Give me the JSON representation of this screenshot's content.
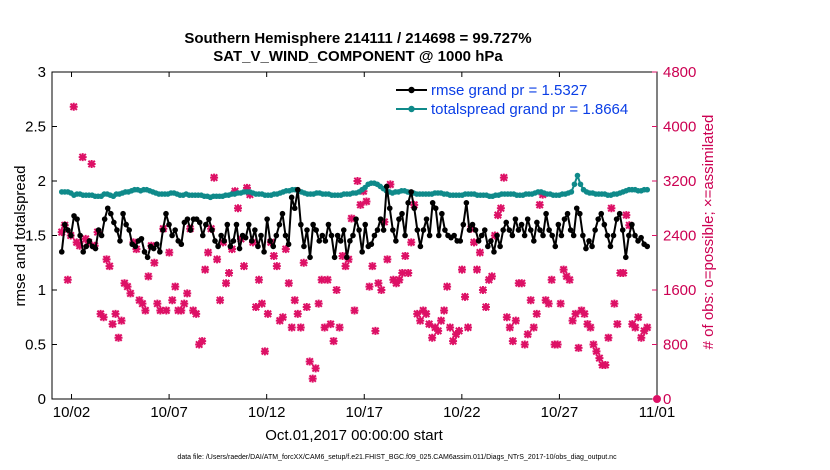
{
  "chart_data": {
    "type": "line",
    "title_line1": "Southern Hemisphere 214111 / 214698 = 99.727%",
    "title_line2": "SAT_V_WIND_COMPONENT @ 1000 hPa",
    "xlabel": "Oct.01,2017 00:00:00 start",
    "ylabel": "rmse and totalspread",
    "ylabel_right": "# of obs: o=possible; ×=assimilated",
    "footer": "data file: /Users/raeder/DAI/ATM_forcXX/CAM6_setup/f.e21.FHIST_BGC.f09_025.CAM6assim.011/Diags_NTrS_2017-10/obs_diag_output.nc",
    "xlim": [
      0.5,
      31.5
    ],
    "ylim": [
      0,
      3
    ],
    "ylim_right": [
      0,
      4800
    ],
    "x_ticks": [
      1.5,
      6.5,
      11.5,
      16.5,
      21.5,
      26.5,
      31.5
    ],
    "x_tick_labels": [
      "10/02",
      "10/07",
      "10/12",
      "10/17",
      "10/22",
      "10/27",
      "11/01"
    ],
    "y_ticks": [
      0,
      0.5,
      1,
      1.5,
      2,
      2.5,
      3
    ],
    "y_tick_labels": [
      "0",
      "0.5",
      "1",
      "1.5",
      "2",
      "2.5",
      "3"
    ],
    "y_ticks_right": [
      0,
      800,
      1600,
      2400,
      3200,
      4000,
      4800
    ],
    "y_tick_labels_right": [
      "0",
      "800",
      "1600",
      "2400",
      "3200",
      "4000",
      "4800"
    ],
    "colors": {
      "rmse": "#000000",
      "spread": "#0f8a8a",
      "obs": "#dd1166"
    },
    "series": [
      {
        "name": "rmse grand pr = 1.5327",
        "values": [
          1.35,
          1.6,
          1.55,
          1.5,
          1.68,
          1.65,
          1.5,
          1.35,
          1.4,
          1.45,
          1.4,
          1.38,
          1.55,
          1.5,
          1.65,
          1.75,
          1.7,
          1.62,
          1.55,
          1.45,
          1.7,
          1.6,
          1.55,
          1.42,
          1.4,
          1.45,
          1.47,
          1.35,
          1.3,
          1.4,
          1.38,
          1.42,
          1.35,
          1.55,
          1.7,
          1.6,
          1.5,
          1.55,
          1.45,
          1.42,
          1.62,
          1.65,
          1.55,
          1.65,
          1.65,
          1.62,
          1.5,
          1.6,
          1.65,
          1.55,
          1.45,
          1.4,
          1.5,
          1.45,
          1.6,
          1.4,
          1.45,
          1.6,
          1.38,
          1.5,
          1.48,
          1.6,
          1.45,
          1.55,
          1.4,
          1.5,
          1.35,
          1.65,
          1.45,
          1.4,
          1.5,
          1.6,
          1.7,
          1.5,
          1.42,
          1.85,
          1.75,
          1.92,
          1.6,
          1.4,
          1.55,
          1.3,
          1.6,
          1.55,
          1.45,
          1.5,
          1.45,
          1.6,
          1.5,
          1.3,
          1.5,
          1.45,
          1.55,
          1.3,
          1.45,
          1.5,
          1.65,
          1.55,
          1.35,
          1.6,
          1.4,
          1.42,
          1.5,
          1.55,
          1.65,
          1.55,
          1.95,
          1.75,
          1.55,
          1.45,
          1.65,
          1.7,
          1.5,
          1.8,
          1.9,
          1.75,
          1.55,
          1.4,
          1.55,
          1.65,
          1.5,
          1.8,
          1.75,
          1.5,
          1.7,
          1.55,
          1.5,
          1.48,
          1.5,
          1.45,
          1.45,
          1.6,
          1.8,
          1.55,
          1.6,
          1.55,
          1.45,
          1.5,
          1.55,
          1.4,
          1.45,
          1.35,
          1.5,
          1.4,
          1.55,
          1.62,
          1.55,
          1.5,
          1.65,
          1.55,
          1.6,
          1.5,
          1.65,
          1.55,
          1.45,
          1.62,
          1.55,
          1.5,
          1.7,
          1.55,
          1.5,
          1.4,
          1.6,
          1.5,
          1.65,
          1.7,
          1.55,
          1.5,
          1.75,
          1.7,
          1.5,
          1.38,
          1.45,
          1.4,
          1.55,
          1.65,
          1.7,
          1.6,
          1.5,
          1.4,
          1.5,
          1.65,
          1.7,
          1.55,
          1.3,
          1.5,
          1.6,
          1.5,
          1.45,
          1.48,
          1.42,
          1.4
        ]
      },
      {
        "name": "totalspread grand pr = 1.8664",
        "values": [
          1.9,
          1.9,
          1.9,
          1.89,
          1.87,
          1.88,
          1.88,
          1.87,
          1.87,
          1.87,
          1.87,
          1.86,
          1.86,
          1.86,
          1.88,
          1.88,
          1.87,
          1.86,
          1.88,
          1.88,
          1.89,
          1.9,
          1.9,
          1.91,
          1.92,
          1.92,
          1.91,
          1.92,
          1.92,
          1.91,
          1.9,
          1.89,
          1.88,
          1.88,
          1.88,
          1.88,
          1.89,
          1.89,
          1.88,
          1.87,
          1.87,
          1.88,
          1.87,
          1.87,
          1.87,
          1.87,
          1.87,
          1.86,
          1.86,
          1.85,
          1.86,
          1.86,
          1.86,
          1.86,
          1.87,
          1.87,
          1.88,
          1.88,
          1.89,
          1.89,
          1.9,
          1.9,
          1.9,
          1.89,
          1.88,
          1.88,
          1.88,
          1.87,
          1.87,
          1.87,
          1.88,
          1.88,
          1.89,
          1.9,
          1.91,
          1.91,
          1.92,
          1.92,
          1.91,
          1.9,
          1.89,
          1.88,
          1.88,
          1.88,
          1.89,
          1.89,
          1.88,
          1.88,
          1.88,
          1.87,
          1.87,
          1.87,
          1.87,
          1.88,
          1.88,
          1.88,
          1.89,
          1.89,
          1.9,
          1.92,
          1.94,
          1.97,
          1.98,
          1.98,
          1.97,
          1.95,
          1.93,
          1.91,
          1.9,
          1.89,
          1.9,
          1.9,
          1.91,
          1.91,
          1.9,
          1.89,
          1.89,
          1.88,
          1.88,
          1.88,
          1.88,
          1.88,
          1.88,
          1.89,
          1.89,
          1.89,
          1.88,
          1.88,
          1.87,
          1.87,
          1.87,
          1.87,
          1.87,
          1.88,
          1.88,
          1.88,
          1.88,
          1.87,
          1.87,
          1.87,
          1.87,
          1.86,
          1.86,
          1.87,
          1.87,
          1.88,
          1.88,
          1.88,
          1.88,
          1.88,
          1.87,
          1.87,
          1.87,
          1.88,
          1.88,
          1.88,
          1.89,
          1.9,
          1.9,
          1.89,
          1.88,
          1.88,
          1.87,
          1.87,
          1.87,
          1.88,
          1.88,
          1.89,
          1.9,
          1.97,
          2.05,
          1.97,
          1.92,
          1.9,
          1.89,
          1.89,
          1.88,
          1.88,
          1.88,
          1.88,
          1.87,
          1.87,
          1.88,
          1.88,
          1.89,
          1.9,
          1.91,
          1.92,
          1.92,
          1.92,
          1.91,
          1.91,
          1.92,
          1.92
        ]
      },
      {
        "name": "# of obs assimilated",
        "axis": "right",
        "marker": "x",
        "values": [
          2450,
          2550,
          1750,
          2400,
          4290,
          2300,
          2250,
          3550,
          2350,
          2300,
          3450,
          2250,
          2450,
          1250,
          1200,
          2050,
          1950,
          1100,
          1250,
          900,
          1150,
          1700,
          1650,
          1550,
          2300,
          2200,
          1450,
          1400,
          1300,
          1800,
          2250,
          2000,
          1400,
          1300,
          2500,
          1300,
          2150,
          1450,
          1650,
          1300,
          1300,
          1400,
          1550,
          2500,
          1300,
          1250,
          800,
          850,
          1900,
          2150,
          2500,
          3250,
          2050,
          1450,
          2300,
          1700,
          1850,
          2200,
          3050,
          2800,
          2350,
          1950,
          3100,
          3000,
          2300,
          1350,
          1750,
          1400,
          700,
          1250,
          2300,
          2100,
          1950,
          1150,
          1200,
          2200,
          1700,
          1050,
          1450,
          1250,
          1050,
          2000,
          1350,
          550,
          300,
          450,
          1400,
          1750,
          1050,
          1750,
          1100,
          850,
          1600,
          1050,
          2100,
          1950,
          2050,
          2650,
          1300,
          3200,
          2850,
          3050,
          2900,
          1650,
          1950,
          1000,
          1700,
          1600,
          2600,
          2050,
          3150,
          1750,
          1700,
          1750,
          1850,
          2100,
          1850,
          2300,
          2850,
          1250,
          1150,
          1300,
          1250,
          1100,
          900,
          1050,
          1000,
          1150,
          1300,
          1650,
          1050,
          850,
          950,
          1000,
          1900,
          1500,
          1050,
          2500,
          2300,
          1900,
          2150,
          1600,
          1350,
          1750,
          1800,
          2400,
          2700,
          2800,
          3250,
          1200,
          1050,
          850,
          1150,
          1700,
          1700,
          800,
          950,
          1450,
          1050,
          1250,
          2850,
          3000,
          1450,
          1400,
          1750,
          800,
          800,
          1400,
          1900,
          1800,
          1750,
          1150,
          1250,
          750,
          1300,
          1250,
          1100,
          1050,
          800,
          700,
          600,
          500,
          500,
          900,
          2800,
          1400,
          1100,
          1850,
          1850,
          2700,
          2550,
          1100,
          1050,
          1200,
          900,
          1000,
          1050
        ]
      }
    ]
  },
  "legend": {
    "rmse_label": "rmse grand pr = 1.5327",
    "spread_label": "totalspread grand pr = 1.8664"
  }
}
